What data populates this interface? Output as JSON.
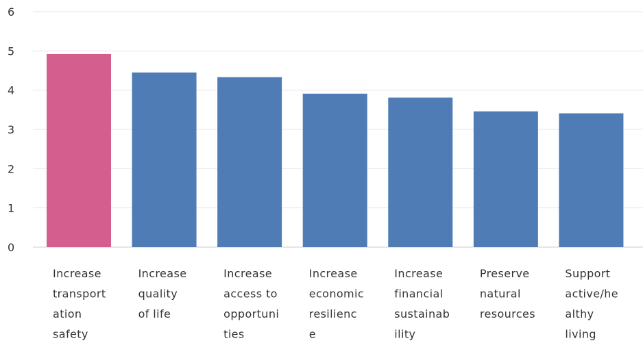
{
  "chart_data": {
    "type": "bar",
    "categories": [
      [
        "Increase",
        "transport",
        "ation",
        "safety"
      ],
      [
        "Increase",
        "quality",
        "of life"
      ],
      [
        "Increase",
        "access to",
        "opportuni",
        "ties"
      ],
      [
        "Increase",
        "economic",
        "resilienc",
        "e"
      ],
      [
        "Increase",
        "financial",
        "sustainab",
        "ility"
      ],
      [
        "Preserve",
        "natural",
        "resources"
      ],
      [
        "Support",
        "active/he",
        "althy",
        "living"
      ]
    ],
    "values": [
      4.92,
      4.45,
      4.33,
      3.91,
      3.81,
      3.46,
      3.41
    ],
    "ylim": [
      0,
      6
    ],
    "yticks": [
      0,
      1,
      2,
      3,
      4,
      5,
      6
    ],
    "grid": true,
    "colors": {
      "highlight": "#d45f8f",
      "default": "#4f7cb5"
    },
    "highlight_index": 0
  }
}
